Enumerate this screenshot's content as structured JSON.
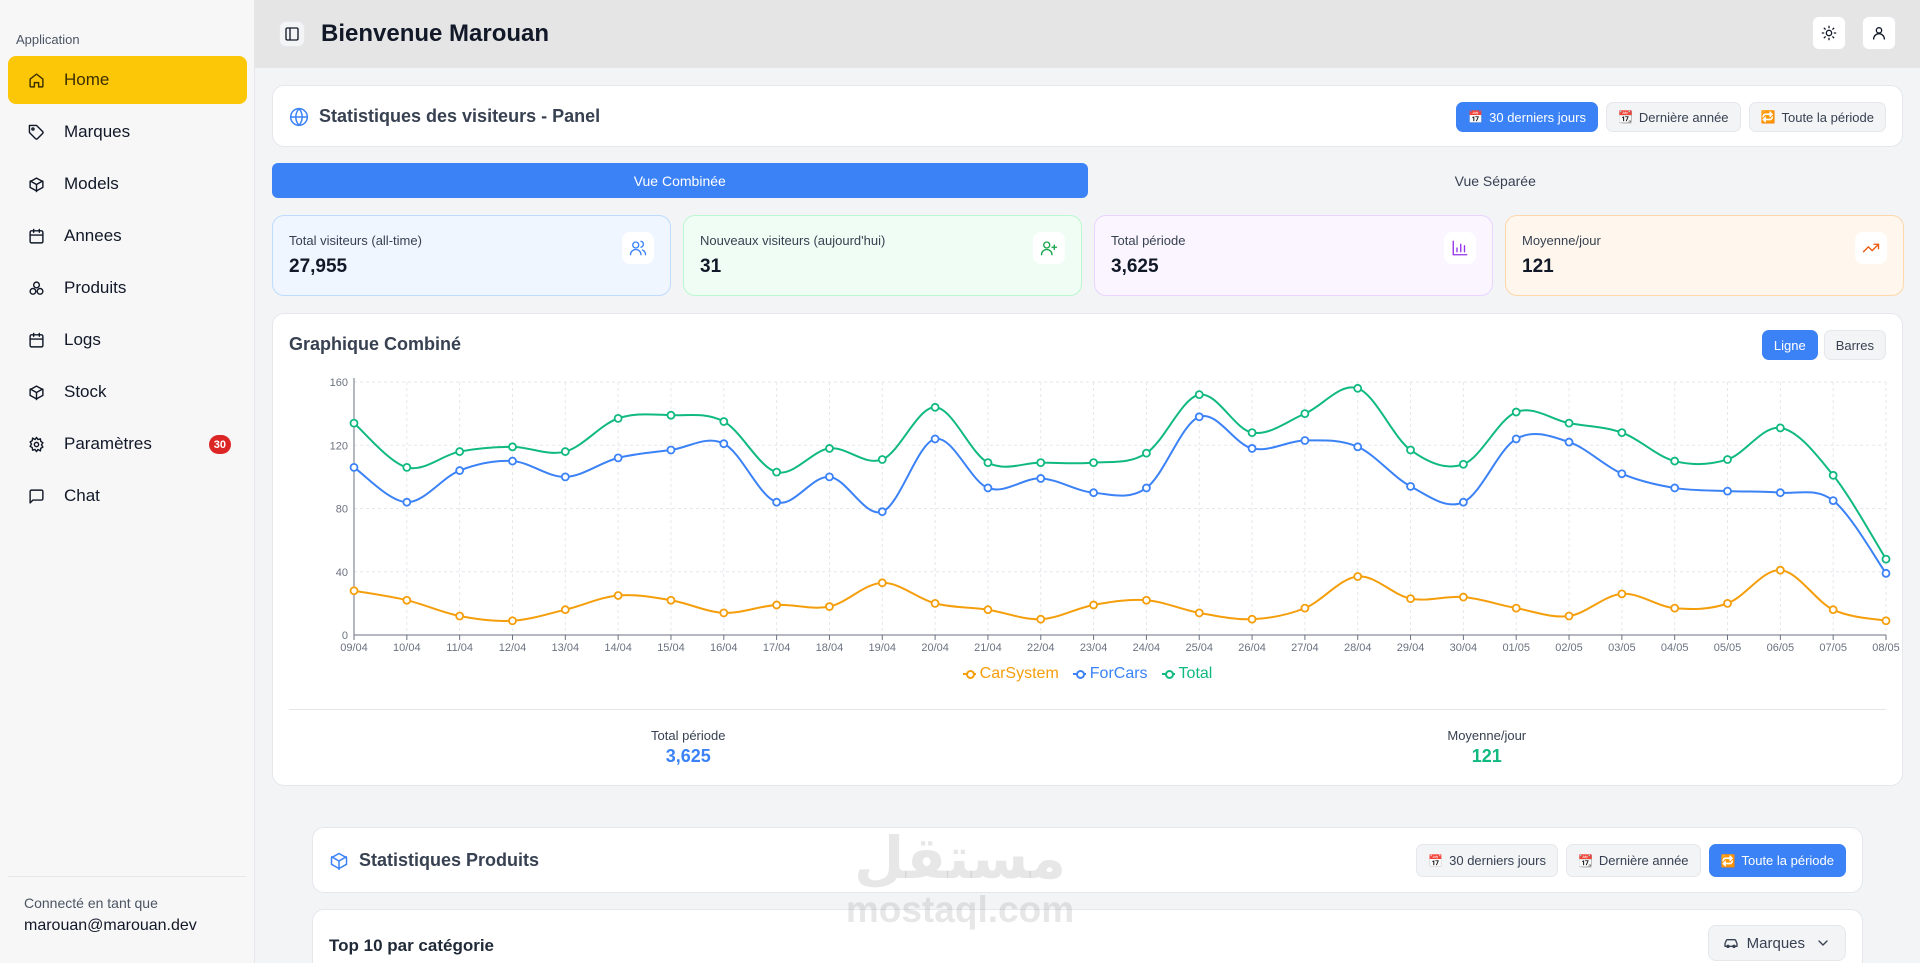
{
  "sidebar": {
    "group_label": "Application",
    "items": [
      {
        "label": "Home",
        "icon": "home-icon",
        "active": true
      },
      {
        "label": "Marques",
        "icon": "tag-icon"
      },
      {
        "label": "Models",
        "icon": "box-icon"
      },
      {
        "label": "Annees",
        "icon": "calendar-icon"
      },
      {
        "label": "Produits",
        "icon": "layers-icon"
      },
      {
        "label": "Logs",
        "icon": "calendar-icon"
      },
      {
        "label": "Stock",
        "icon": "box-icon"
      },
      {
        "label": "Paramètres",
        "icon": "gear-icon",
        "badge": "30"
      },
      {
        "label": "Chat",
        "icon": "chat-icon"
      }
    ],
    "footer": {
      "label": "Connecté en tant que",
      "email": "marouan@marouan.dev"
    }
  },
  "header": {
    "title": "Bienvenue Marouan"
  },
  "visitors": {
    "title": "Statistiques des visiteurs - Panel",
    "periods": [
      "30 derniers jours",
      "Dernière année",
      "Toute la période"
    ],
    "period_icons": [
      "📅",
      "📆",
      "🔁"
    ],
    "active_period": 0,
    "view_tabs": [
      "Vue Combinée",
      "Vue Séparée"
    ],
    "stats": [
      {
        "label": "Total visiteurs (all-time)",
        "value": "27,955",
        "icon": "users-icon",
        "color": "#3b82f6",
        "bg": "#eff6ff",
        "border": "#bfdbfe"
      },
      {
        "label": "Nouveaux visiteurs (aujourd'hui)",
        "value": "31",
        "icon": "user-plus-icon",
        "color": "#16a34a",
        "bg": "#f0fdf4",
        "border": "#bbf7d0"
      },
      {
        "label": "Total période",
        "value": "3,625",
        "icon": "bar-chart-icon",
        "color": "#9333ea",
        "bg": "#faf5ff",
        "border": "#e9d5ff"
      },
      {
        "label": "Moyenne/jour",
        "value": "121",
        "icon": "trending-up-icon",
        "color": "#ea580c",
        "bg": "#fff7ed",
        "border": "#fed7aa"
      }
    ],
    "chart_title": "Graphique Combiné",
    "chart_toggle": [
      "Ligne",
      "Barres"
    ],
    "summary": [
      {
        "label": "Total période",
        "value": "3,625",
        "color": "#3b82f6"
      },
      {
        "label": "Moyenne/jour",
        "value": "121",
        "color": "#10b981"
      }
    ]
  },
  "chart_data": {
    "type": "line",
    "title": "Graphique Combiné",
    "x": [
      "09/04",
      "10/04",
      "11/04",
      "12/04",
      "13/04",
      "14/04",
      "15/04",
      "16/04",
      "17/04",
      "18/04",
      "19/04",
      "20/04",
      "21/04",
      "22/04",
      "23/04",
      "24/04",
      "25/04",
      "26/04",
      "27/04",
      "28/04",
      "29/04",
      "30/04",
      "01/05",
      "02/05",
      "03/05",
      "04/05",
      "05/05",
      "06/05",
      "07/05",
      "08/05"
    ],
    "yticks": [
      0,
      40,
      80,
      120,
      160
    ],
    "ylim": [
      0,
      160
    ],
    "grid": true,
    "legend": "bottom",
    "series": [
      {
        "name": "CarSystem",
        "color": "#f59e0b",
        "values": [
          28,
          22,
          12,
          9,
          16,
          25,
          22,
          14,
          19,
          18,
          33,
          20,
          16,
          10,
          19,
          22,
          14,
          10,
          17,
          37,
          23,
          24,
          17,
          12,
          26,
          17,
          20,
          41,
          16,
          9
        ]
      },
      {
        "name": "ForCars",
        "color": "#3b82f6",
        "values": [
          106,
          84,
          104,
          110,
          100,
          112,
          117,
          121,
          84,
          100,
          78,
          124,
          93,
          99,
          90,
          93,
          138,
          118,
          123,
          119,
          94,
          84,
          124,
          122,
          102,
          93,
          91,
          90,
          85,
          39
        ]
      },
      {
        "name": "Total",
        "color": "#10b981",
        "values": [
          134,
          106,
          116,
          119,
          116,
          137,
          139,
          135,
          103,
          118,
          111,
          144,
          109,
          109,
          109,
          115,
          152,
          128,
          140,
          156,
          117,
          108,
          141,
          134,
          128,
          110,
          111,
          131,
          101,
          48
        ]
      }
    ]
  },
  "products": {
    "title": "Statistiques Produits",
    "periods": [
      "30 derniers jours",
      "Dernière année",
      "Toute la période"
    ],
    "period_icons": [
      "📅",
      "📆",
      "🔁"
    ],
    "active_period": 2,
    "top_title": "Top 10 par catégorie",
    "dropdown_value": "Marques"
  },
  "watermark": {
    "arabic": "مستقل",
    "latin": "mostaql.com"
  }
}
